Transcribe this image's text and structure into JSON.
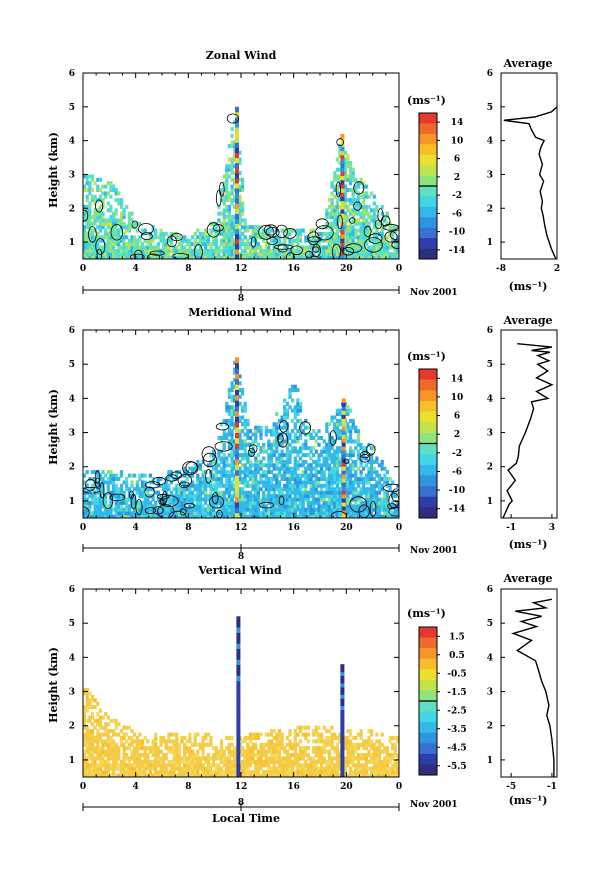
{
  "colors": {
    "scale": [
      "#2b2f7e",
      "#2d3ea8",
      "#3a6fd4",
      "#2f95e0",
      "#33b8e8",
      "#40d6e6",
      "#5fe0c0",
      "#8ee47c",
      "#c2e44a",
      "#eedf2c",
      "#f8bf2a",
      "#f6952a",
      "#ef6a2a",
      "#e53a2a"
    ],
    "vertical_fill": "#f6cb45",
    "vertical_fill_light": "#f1da5e",
    "contour": "#000000"
  },
  "panels": [
    {
      "title": "Zonal Wind",
      "ylabel": "Height (km)",
      "x_ticks": [
        "0",
        "4",
        "8",
        "12",
        "16",
        "20",
        "0"
      ],
      "y_ticks": [
        "1",
        "2",
        "3",
        "4",
        "5",
        "6"
      ],
      "date_marker": "8",
      "date_label": "Nov 2001",
      "colorbar_unit": "(ms⁻¹)",
      "colorbar_ticks": [
        "14",
        "10",
        "6",
        "2",
        "-2",
        "-6",
        "-10",
        "-14"
      ],
      "average_title": "Average",
      "average_x_ticks": [
        "-8",
        "2"
      ],
      "average_unit": "(ms⁻¹)"
    },
    {
      "title": "Meridional Wind",
      "ylabel": "Height (km)",
      "x_ticks": [
        "0",
        "4",
        "8",
        "12",
        "16",
        "20",
        "0"
      ],
      "y_ticks": [
        "1",
        "2",
        "3",
        "4",
        "5",
        "6"
      ],
      "date_marker": "8",
      "date_label": "Nov 2001",
      "colorbar_unit": "(ms⁻¹)",
      "colorbar_ticks": [
        "14",
        "10",
        "6",
        "2",
        "-2",
        "-6",
        "-10",
        "-14"
      ],
      "average_title": "Average",
      "average_x_ticks": [
        "-1",
        "3"
      ],
      "average_unit": "(ms⁻¹)"
    },
    {
      "title": "Vertical Wind",
      "ylabel": "Height (km)",
      "xlabel": "Local Time",
      "x_ticks": [
        "0",
        "4",
        "8",
        "12",
        "16",
        "20",
        "0"
      ],
      "y_ticks": [
        "1",
        "2",
        "3",
        "4",
        "5",
        "6"
      ],
      "date_marker": "8",
      "date_label": "Nov 2001",
      "colorbar_unit": "(ms⁻¹)",
      "colorbar_ticks": [
        "1.5",
        "0.5",
        "-0.5",
        "-1.5",
        "-2.5",
        "-3.5",
        "-4.5",
        "-5.5"
      ],
      "average_title": "Average",
      "average_x_ticks": [
        "-5",
        "-1"
      ],
      "average_unit": "(ms⁻¹)"
    }
  ],
  "chart_data": [
    {
      "type": "heatmap",
      "title": "Zonal Wind",
      "xlabel": "",
      "ylabel": "Height (km)",
      "xlim": [
        0,
        24
      ],
      "ylim": [
        0.5,
        6
      ],
      "color_range": [
        -16,
        16
      ],
      "colorbar_ticks": [
        14,
        10,
        6,
        2,
        -2,
        -6,
        -10,
        -14
      ],
      "date": "Nov 2001",
      "data_tops": [
        [
          0,
          3.0
        ],
        [
          2,
          2.8
        ],
        [
          4,
          1.6
        ],
        [
          6,
          1.3
        ],
        [
          8,
          1.2
        ],
        [
          10,
          1.6
        ],
        [
          11.5,
          5.0
        ],
        [
          12.3,
          1.5
        ],
        [
          14,
          1.4
        ],
        [
          16,
          1.3
        ],
        [
          18,
          1.4
        ],
        [
          19.5,
          4.0
        ],
        [
          20.5,
          3.0
        ],
        [
          22,
          2.4
        ],
        [
          24,
          1.3
        ]
      ],
      "towers": [
        {
          "t": 11.7,
          "top": 5.0
        },
        {
          "t": 19.7,
          "top": 4.2
        }
      ],
      "average_profile": {
        "title": "Average",
        "xlim": [
          -8,
          2
        ],
        "x_ticks": [
          -8,
          2
        ],
        "points": [
          [
            1.8,
            0.5
          ],
          [
            1.0,
            0.8
          ],
          [
            0.6,
            1.0
          ],
          [
            0.2,
            1.2
          ],
          [
            -0.2,
            1.5
          ],
          [
            -0.5,
            1.8
          ],
          [
            -0.8,
            2.0
          ],
          [
            -0.6,
            2.2
          ],
          [
            -1.0,
            2.5
          ],
          [
            -0.4,
            2.8
          ],
          [
            -1.1,
            3.0
          ],
          [
            -0.6,
            3.3
          ],
          [
            -1.2,
            3.6
          ],
          [
            -0.9,
            3.8
          ],
          [
            -0.3,
            4.0
          ],
          [
            -1.8,
            4.1
          ],
          [
            -2.5,
            4.3
          ],
          [
            -3.0,
            4.5
          ],
          [
            -7.5,
            4.6
          ],
          [
            -2.0,
            4.7
          ],
          [
            1.0,
            4.85
          ],
          [
            2.0,
            5.0
          ]
        ]
      }
    },
    {
      "type": "heatmap",
      "title": "Meridional Wind",
      "xlabel": "",
      "ylabel": "Height (km)",
      "xlim": [
        0,
        24
      ],
      "ylim": [
        0.5,
        6
      ],
      "color_range": [
        -16,
        16
      ],
      "colorbar_ticks": [
        14,
        10,
        6,
        2,
        -2,
        -6,
        -10,
        -14
      ],
      "date": "Nov 2001",
      "data_tops": [
        [
          0,
          1.8
        ],
        [
          2,
          1.9
        ],
        [
          4,
          1.7
        ],
        [
          6,
          1.8
        ],
        [
          8,
          2.0
        ],
        [
          10,
          2.5
        ],
        [
          11.5,
          5.2
        ],
        [
          12.5,
          3.2
        ],
        [
          14,
          3.1
        ],
        [
          16,
          4.5
        ],
        [
          17,
          3.1
        ],
        [
          18,
          3.0
        ],
        [
          19.8,
          4.0
        ],
        [
          21,
          2.8
        ],
        [
          22,
          2.5
        ],
        [
          24,
          1.3
        ]
      ],
      "towers": [
        {
          "t": 11.7,
          "top": 5.2
        },
        {
          "t": 19.8,
          "top": 4.0
        }
      ],
      "average_profile": {
        "title": "Average",
        "xlim": [
          -2,
          3.5
        ],
        "x_ticks": [
          -1,
          3
        ],
        "points": [
          [
            -1.8,
            0.5
          ],
          [
            -1.2,
            0.9
          ],
          [
            -0.9,
            1.0
          ],
          [
            -1.4,
            1.3
          ],
          [
            -0.6,
            1.6
          ],
          [
            -1.3,
            1.9
          ],
          [
            -0.5,
            2.1
          ],
          [
            -0.3,
            2.3
          ],
          [
            -0.2,
            2.6
          ],
          [
            0.4,
            3.0
          ],
          [
            0.9,
            3.4
          ],
          [
            1.2,
            3.7
          ],
          [
            1.0,
            3.9
          ],
          [
            2.6,
            4.0
          ],
          [
            1.5,
            4.2
          ],
          [
            3.0,
            4.4
          ],
          [
            1.5,
            4.6
          ],
          [
            2.6,
            4.8
          ],
          [
            1.6,
            5.0
          ],
          [
            2.7,
            5.1
          ],
          [
            1.6,
            5.25
          ],
          [
            2.8,
            5.35
          ],
          [
            1.0,
            5.4
          ],
          [
            3.0,
            5.5
          ],
          [
            -0.4,
            5.6
          ]
        ]
      }
    },
    {
      "type": "heatmap",
      "title": "Vertical Wind",
      "xlabel": "Local Time",
      "ylabel": "Height (km)",
      "xlim": [
        0,
        24
      ],
      "ylim": [
        0.5,
        6
      ],
      "color_range": [
        -6,
        2
      ],
      "colorbar_ticks": [
        1.5,
        0.5,
        -0.5,
        -1.5,
        -2.5,
        -3.5,
        -4.5,
        -5.5
      ],
      "date": "Nov 2001",
      "data_tops": [
        [
          0,
          3.2
        ],
        [
          2,
          2.2
        ],
        [
          4,
          1.8
        ],
        [
          8,
          1.8
        ],
        [
          11,
          1.6
        ],
        [
          14,
          1.8
        ],
        [
          18,
          2.0
        ],
        [
          22,
          1.8
        ],
        [
          24,
          1.6
        ]
      ],
      "towers": [
        {
          "t": 11.8,
          "top": 5.2
        },
        {
          "t": 19.7,
          "top": 3.8
        }
      ],
      "average_profile": {
        "title": "Average",
        "xlim": [
          -6,
          -0.5
        ],
        "x_ticks": [
          -5,
          -1
        ],
        "points": [
          [
            -0.8,
            0.5
          ],
          [
            -0.8,
            1.0
          ],
          [
            -1.0,
            1.6
          ],
          [
            -1.2,
            2.0
          ],
          [
            -1.5,
            2.3
          ],
          [
            -1.3,
            2.6
          ],
          [
            -1.6,
            3.0
          ],
          [
            -2.0,
            3.3
          ],
          [
            -2.3,
            3.6
          ],
          [
            -2.6,
            3.9
          ],
          [
            -4.4,
            4.2
          ],
          [
            -3.0,
            4.5
          ],
          [
            -4.8,
            4.7
          ],
          [
            -2.5,
            4.9
          ],
          [
            -4.0,
            5.05
          ],
          [
            -2.0,
            5.2
          ],
          [
            -4.6,
            5.35
          ],
          [
            -1.6,
            5.45
          ],
          [
            -2.8,
            5.6
          ],
          [
            -1.0,
            5.7
          ]
        ]
      }
    }
  ]
}
